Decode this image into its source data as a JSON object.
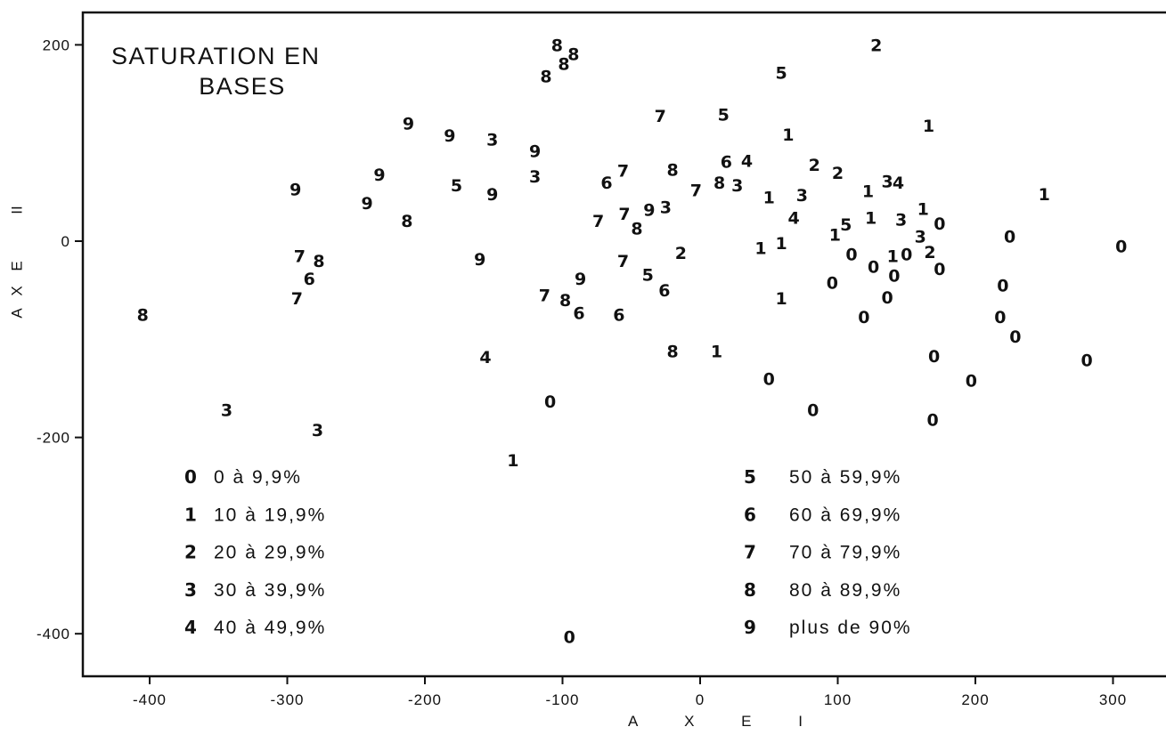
{
  "chart_data": {
    "type": "scatter",
    "title_lines": [
      "SATURATION EN",
      "BASES"
    ],
    "xlabel": "A X E   I",
    "ylabel": "A X E   II",
    "xlim": [
      -440,
      330
    ],
    "ylim": [
      -445,
      230
    ],
    "x_ticks": [
      -400,
      -300,
      -200,
      -100,
      0,
      100,
      200,
      300
    ],
    "x_tick_labels": [
      "-400",
      "-300",
      "-200",
      "-100",
      "0",
      "100",
      "200",
      "300"
    ],
    "y_ticks": [
      200,
      0,
      -200,
      -400
    ],
    "y_tick_labels": [
      "200",
      "0",
      "-200",
      "-400"
    ],
    "marker": "class code digit",
    "legend": [
      {
        "code": "0",
        "label": "0 à 9,9%"
      },
      {
        "code": "1",
        "label": "10 à 19,9%"
      },
      {
        "code": "2",
        "label": "20 à 29,9%"
      },
      {
        "code": "3",
        "label": "30 à 39,9%"
      },
      {
        "code": "4",
        "label": "40 à 49,9%"
      },
      {
        "code": "5",
        "label": "50 à 59,9%"
      },
      {
        "code": "6",
        "label": "60 à 69,9%"
      },
      {
        "code": "7",
        "label": "70 à 79,9%"
      },
      {
        "code": "8",
        "label": "80 à 89,9%"
      },
      {
        "code": "9",
        "label": "plus de 90%"
      }
    ],
    "points": [
      {
        "x": -405,
        "y": -75,
        "code": "8"
      },
      {
        "x": -344,
        "y": -172,
        "code": "3"
      },
      {
        "x": -294,
        "y": 53,
        "code": "9"
      },
      {
        "x": -291,
        "y": -15,
        "code": "7"
      },
      {
        "x": -277,
        "y": -20,
        "code": "8"
      },
      {
        "x": -284,
        "y": -38,
        "code": "6"
      },
      {
        "x": -293,
        "y": -58,
        "code": "7"
      },
      {
        "x": -278,
        "y": -192,
        "code": "3"
      },
      {
        "x": -233,
        "y": 68,
        "code": "9"
      },
      {
        "x": -242,
        "y": 39,
        "code": "9"
      },
      {
        "x": -212,
        "y": 120,
        "code": "9"
      },
      {
        "x": -213,
        "y": 21,
        "code": "8"
      },
      {
        "x": -182,
        "y": 108,
        "code": "9"
      },
      {
        "x": -177,
        "y": 57,
        "code": "5"
      },
      {
        "x": -151,
        "y": 104,
        "code": "3"
      },
      {
        "x": -151,
        "y": 48,
        "code": "9"
      },
      {
        "x": -160,
        "y": -18,
        "code": "9"
      },
      {
        "x": -156,
        "y": -118,
        "code": "4"
      },
      {
        "x": -120,
        "y": 92,
        "code": "9"
      },
      {
        "x": -120,
        "y": 66,
        "code": "3"
      },
      {
        "x": -136,
        "y": -223,
        "code": "1"
      },
      {
        "x": -109,
        "y": -163,
        "code": "0"
      },
      {
        "x": -104,
        "y": 200,
        "code": "8"
      },
      {
        "x": -99,
        "y": 181,
        "code": "8"
      },
      {
        "x": -92,
        "y": 191,
        "code": "8"
      },
      {
        "x": -112,
        "y": 168,
        "code": "8"
      },
      {
        "x": -113,
        "y": -55,
        "code": "7"
      },
      {
        "x": -98,
        "y": -60,
        "code": "8"
      },
      {
        "x": -87,
        "y": -38,
        "code": "9"
      },
      {
        "x": -88,
        "y": -73,
        "code": "6"
      },
      {
        "x": -95,
        "y": -403,
        "code": "0"
      },
      {
        "x": -68,
        "y": 60,
        "code": "6"
      },
      {
        "x": -56,
        "y": 72,
        "code": "7"
      },
      {
        "x": -74,
        "y": 21,
        "code": "7"
      },
      {
        "x": -55,
        "y": 28,
        "code": "7"
      },
      {
        "x": -46,
        "y": 13,
        "code": "8"
      },
      {
        "x": -37,
        "y": 32,
        "code": "9"
      },
      {
        "x": -25,
        "y": 35,
        "code": "3"
      },
      {
        "x": -56,
        "y": -20,
        "code": "7"
      },
      {
        "x": -59,
        "y": -75,
        "code": "6"
      },
      {
        "x": -38,
        "y": -34,
        "code": "5"
      },
      {
        "x": -26,
        "y": -50,
        "code": "6"
      },
      {
        "x": -29,
        "y": 128,
        "code": "7"
      },
      {
        "x": -14,
        "y": -12,
        "code": "2"
      },
      {
        "x": -20,
        "y": 73,
        "code": "8"
      },
      {
        "x": -3,
        "y": 52,
        "code": "7"
      },
      {
        "x": -20,
        "y": -112,
        "code": "8"
      },
      {
        "x": 17,
        "y": 129,
        "code": "5"
      },
      {
        "x": 14,
        "y": 60,
        "code": "8"
      },
      {
        "x": 19,
        "y": 81,
        "code": "6"
      },
      {
        "x": 34,
        "y": 82,
        "code": "4"
      },
      {
        "x": 27,
        "y": 57,
        "code": "3"
      },
      {
        "x": 12,
        "y": -112,
        "code": "1"
      },
      {
        "x": 59,
        "y": 172,
        "code": "5"
      },
      {
        "x": 64,
        "y": 109,
        "code": "1"
      },
      {
        "x": 50,
        "y": 45,
        "code": "1"
      },
      {
        "x": 74,
        "y": 47,
        "code": "3"
      },
      {
        "x": 68,
        "y": 24,
        "code": "4"
      },
      {
        "x": 59,
        "y": -2,
        "code": "1"
      },
      {
        "x": 44,
        "y": -7,
        "code": "1"
      },
      {
        "x": 59,
        "y": -58,
        "code": "1"
      },
      {
        "x": 50,
        "y": -140,
        "code": "0"
      },
      {
        "x": 82,
        "y": -172,
        "code": "0"
      },
      {
        "x": 83,
        "y": 78,
        "code": "2"
      },
      {
        "x": 100,
        "y": 70,
        "code": "2"
      },
      {
        "x": 128,
        "y": 200,
        "code": "2"
      },
      {
        "x": 96,
        "y": -42,
        "code": "0"
      },
      {
        "x": 98,
        "y": 7,
        "code": "1"
      },
      {
        "x": 106,
        "y": 17,
        "code": "5"
      },
      {
        "x": 110,
        "y": -13,
        "code": "0"
      },
      {
        "x": 119,
        "y": -77,
        "code": "0"
      },
      {
        "x": 122,
        "y": 51,
        "code": "1"
      },
      {
        "x": 124,
        "y": 24,
        "code": "1"
      },
      {
        "x": 126,
        "y": -26,
        "code": "0"
      },
      {
        "x": 136,
        "y": 61,
        "code": "3"
      },
      {
        "x": 144,
        "y": 60,
        "code": "4"
      },
      {
        "x": 140,
        "y": -15,
        "code": "1"
      },
      {
        "x": 146,
        "y": 22,
        "code": "3"
      },
      {
        "x": 141,
        "y": -35,
        "code": "0"
      },
      {
        "x": 136,
        "y": -57,
        "code": "0"
      },
      {
        "x": 150,
        "y": -13,
        "code": "0"
      },
      {
        "x": 166,
        "y": 118,
        "code": "1"
      },
      {
        "x": 162,
        "y": 33,
        "code": "1"
      },
      {
        "x": 160,
        "y": 5,
        "code": "3"
      },
      {
        "x": 167,
        "y": -11,
        "code": "2"
      },
      {
        "x": 174,
        "y": 18,
        "code": "0"
      },
      {
        "x": 174,
        "y": -28,
        "code": "0"
      },
      {
        "x": 170,
        "y": -117,
        "code": "0"
      },
      {
        "x": 169,
        "y": -182,
        "code": "0"
      },
      {
        "x": 197,
        "y": -142,
        "code": "0"
      },
      {
        "x": 225,
        "y": 5,
        "code": "0"
      },
      {
        "x": 220,
        "y": -45,
        "code": "0"
      },
      {
        "x": 218,
        "y": -77,
        "code": "0"
      },
      {
        "x": 229,
        "y": -97,
        "code": "0"
      },
      {
        "x": 250,
        "y": 48,
        "code": "1"
      },
      {
        "x": 281,
        "y": -121,
        "code": "0"
      },
      {
        "x": 306,
        "y": -5,
        "code": "0"
      }
    ]
  }
}
